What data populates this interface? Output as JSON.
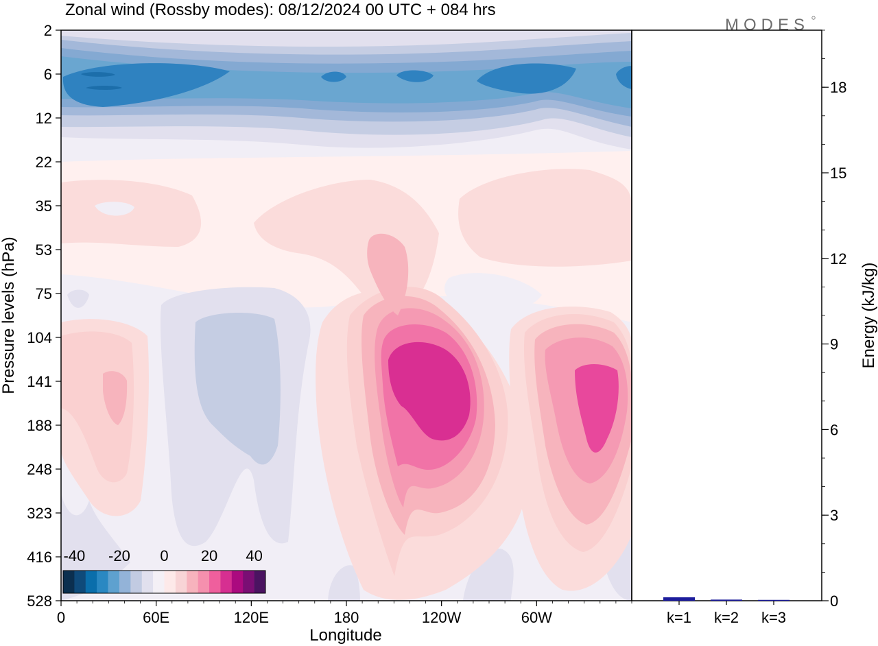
{
  "header": {
    "title": "Zonal wind (Rossby modes):  08/12/2024  00 UTC  + 084 hrs",
    "logo": "MODES"
  },
  "colors": {
    "scale": [
      "#0b2f4f",
      "#0f4a7a",
      "#0a6eab",
      "#2a88c2",
      "#5ea1cf",
      "#93b3d8",
      "#c2cbe2",
      "#e1e0ee",
      "#f4f0f6",
      "#fde9e9",
      "#f8d4d6",
      "#f7b3bd",
      "#f590ae",
      "#ef5f9d",
      "#d62f91",
      "#ab0a7f",
      "#7a0e74",
      "#4b1361"
    ],
    "bar": "#1c1c9c",
    "contour_fill": {
      "n4": "#f1eef6",
      "n3": "#e2e0ee",
      "n2": "#c5cde3",
      "n1": "#a3b8d9",
      "m1": "#84a9d2",
      "m2": "#6aa6d0",
      "m3": "#3f8ec6",
      "m4": "#2f82c0",
      "m5": "#1c6eaa",
      "p1": "#fff0ef",
      "p2": "#fbdcdb",
      "p3": "#fad0d0",
      "p4": "#f7b4bd",
      "p5": "#f59ab3",
      "p6": "#f173a7",
      "p7": "#e8489c",
      "p8": "#d92f92"
    }
  },
  "chart_data": [
    {
      "type": "heatmap",
      "title": "Zonal wind (Rossby modes):  08/12/2024  00 UTC  + 084 hrs",
      "xlabel": "Longitude",
      "ylabel": "Pressure levels (hPa)",
      "x_ticks": [
        "0",
        "60E",
        "120E",
        "180",
        "120W",
        "60W"
      ],
      "y_ticks": [
        "2",
        "6",
        "12",
        "22",
        "35",
        "53",
        "75",
        "104",
        "141",
        "188",
        "248",
        "323",
        "416",
        "528"
      ],
      "colorbar": {
        "tick_labels": [
          "-40",
          "-20",
          "0",
          "20",
          "40"
        ],
        "range": [
          -45,
          45
        ],
        "interval": 5
      },
      "features": [
        {
          "label": "easterly core near 6 hPa",
          "value": -30
        },
        {
          "label": "westerly maximum near 141 hPa, 120W",
          "value": 35
        },
        {
          "label": "westerly maximum near 141 hPa, 30W",
          "value": 30
        },
        {
          "label": "easterly region near 188 hPa, 100E",
          "value": -10
        }
      ]
    },
    {
      "type": "bar",
      "categories": [
        "k=1",
        "k=2",
        "k=3"
      ],
      "values": [
        0.12,
        0.04,
        0.03
      ],
      "ylabel": "Energy (kJ/kg)",
      "ylim": [
        0,
        20
      ],
      "y_ticks": [
        "0",
        "3",
        "6",
        "9",
        "12",
        "15",
        "18"
      ]
    }
  ]
}
